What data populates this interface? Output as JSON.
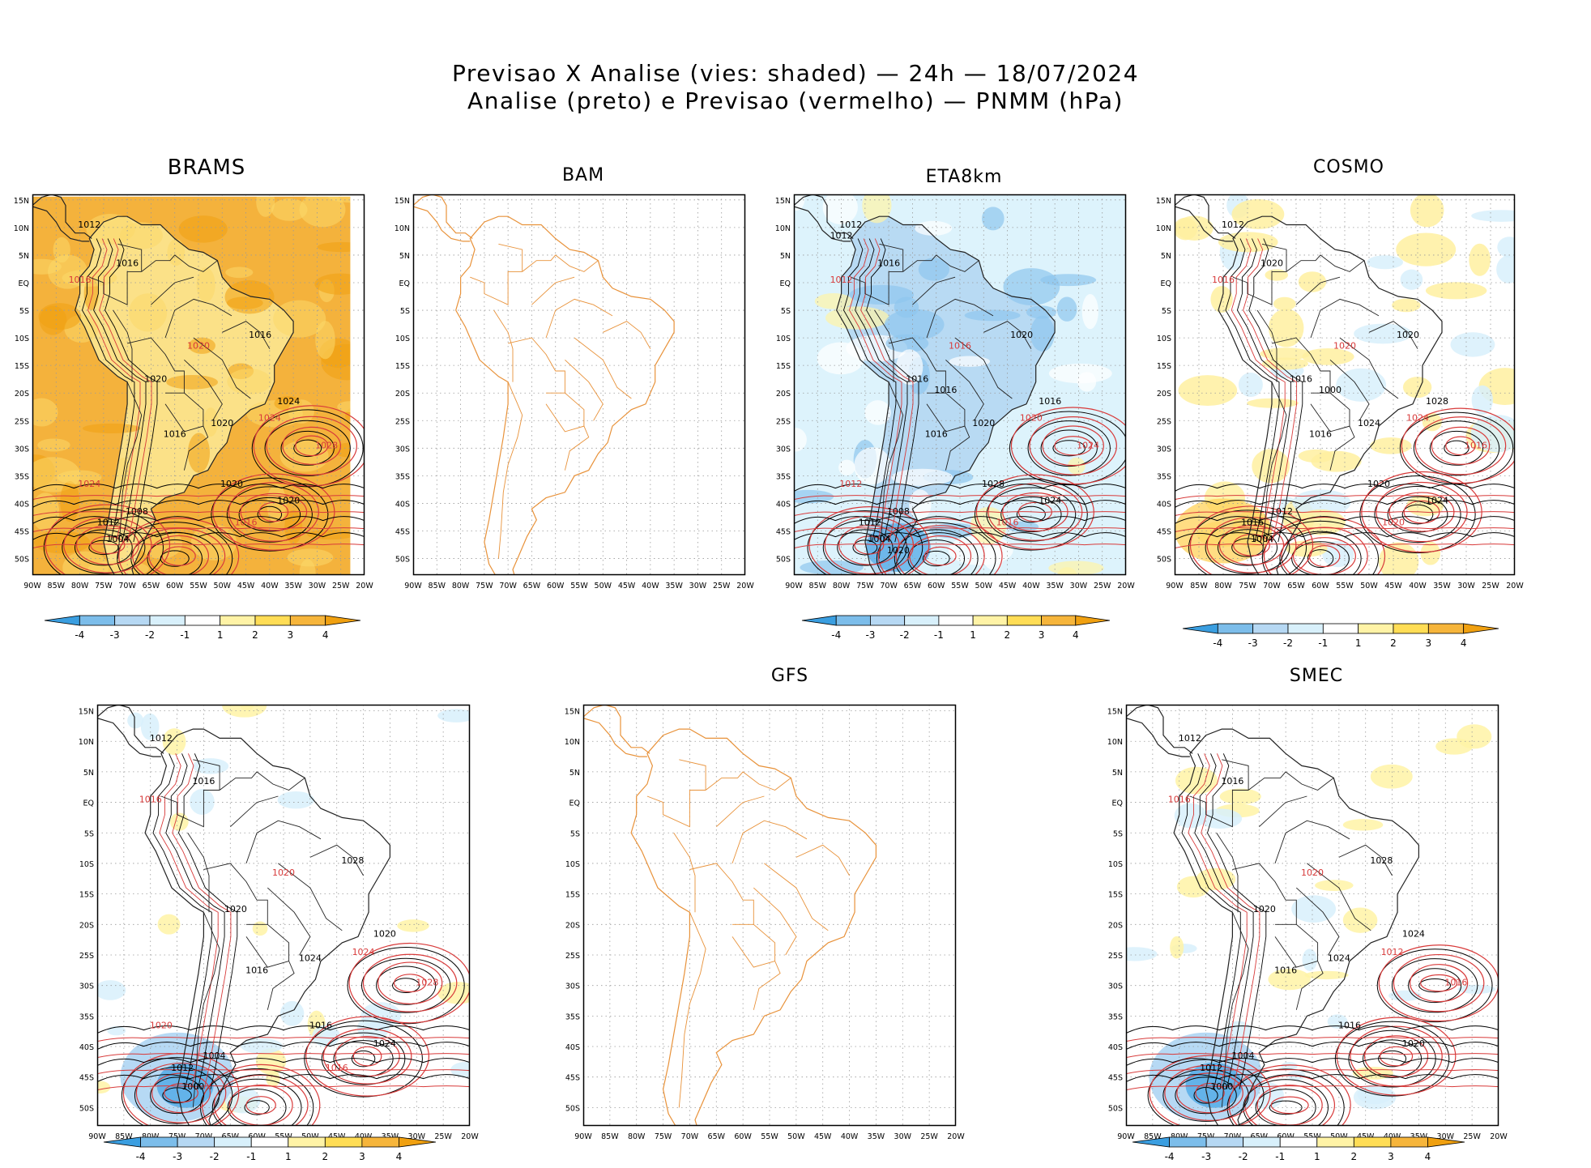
{
  "header": {
    "line1": "Previsao X Analise (vies: shaded) — 24h — 18/07/2024",
    "line2": "Analise (preto) e Previsao (vermelho) — PNMM (hPa)"
  },
  "axes": {
    "lat_labels": [
      "15N",
      "10N",
      "5N",
      "EQ",
      "5S",
      "10S",
      "15S",
      "20S",
      "25S",
      "30S",
      "35S",
      "40S",
      "45S",
      "50S"
    ],
    "lon_labels": [
      "90W",
      "85W",
      "80W",
      "75W",
      "70W",
      "65W",
      "60W",
      "55W",
      "50W",
      "45W",
      "40W",
      "35W",
      "30W",
      "25W",
      "20W"
    ]
  },
  "colorbar": {
    "labels": [
      "-4",
      "-3",
      "-2",
      "-1",
      "1",
      "2",
      "3",
      "4"
    ],
    "colors": [
      "#3a9ee0",
      "#7cbdea",
      "#b6d8f3",
      "#d8f0fb",
      "#ffffff",
      "#fff3a6",
      "#ffdd55",
      "#f6b53b",
      "#f0a010"
    ]
  },
  "colors": {
    "coast": "#222222",
    "analysis_contour": "#000000",
    "forecast_contour": "#d83a3a",
    "missing_model_coast": "#e8923a",
    "positive_bias": "#f3a83a",
    "negative_bias": "#8fc6ee"
  },
  "panels": [
    {
      "id": "brams",
      "title": "BRAMS",
      "mode": "warm",
      "labels": {
        "black": [
          "1016",
          "1012",
          "1016",
          "1020",
          "1020",
          "1016",
          "1024",
          "1020",
          "1020",
          "1012",
          "1008",
          "1004"
        ],
        "red": [
          "1016",
          "1020",
          "1024",
          "1028",
          "1016",
          "1024"
        ]
      }
    },
    {
      "id": "bam",
      "title": "BAM",
      "mode": "empty",
      "labels": {
        "black": [],
        "red": []
      }
    },
    {
      "id": "eta8km",
      "title": "ETA8km",
      "mode": "cool",
      "labels": {
        "black": [
          "1016",
          "1012",
          "1016",
          "1016",
          "1020",
          "1020",
          "1016",
          "1024",
          "1028",
          "1012",
          "1008",
          "1004",
          "1016",
          "1012",
          "1020"
        ],
        "red": [
          "1012",
          "1016",
          "1020",
          "1024",
          "1016",
          "1012"
        ]
      }
    },
    {
      "id": "cosmo",
      "title": "COSMO",
      "mode": "mixed",
      "labels": {
        "black": [
          "1016",
          "1012",
          "1020",
          "1016",
          "1024",
          "1020",
          "1028",
          "1024",
          "1020",
          "1016",
          "1012",
          "1004",
          "1000"
        ],
        "red": [
          "1016",
          "1020",
          "1024",
          "1016",
          "1020"
        ]
      }
    },
    {
      "id": "panel5",
      "title": "",
      "mode": "light",
      "labels": {
        "black": [
          "1016",
          "1012",
          "1016",
          "1020",
          "1024",
          "1028",
          "1020",
          "1024",
          "1016",
          "1012",
          "1004",
          "1000"
        ],
        "red": [
          "1016",
          "1020",
          "1024",
          "1028",
          "1016",
          "1020"
        ]
      }
    },
    {
      "id": "gfs",
      "title": "GFS",
      "mode": "empty",
      "labels": {
        "black": [],
        "red": []
      }
    },
    {
      "id": "smec",
      "title": "SMEC",
      "mode": "light",
      "labels": {
        "black": [
          "1016",
          "1012",
          "1016",
          "1020",
          "1024",
          "1028",
          "1024",
          "1020",
          "1016",
          "1012",
          "1004",
          "1000"
        ],
        "red": [
          "1016",
          "1020",
          "1012",
          "1016"
        ]
      }
    }
  ]
}
